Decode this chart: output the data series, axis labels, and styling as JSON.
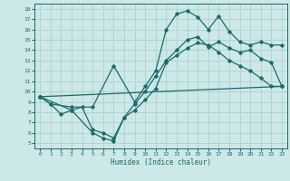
{
  "xlabel": "Humidex (Indice chaleur)",
  "xlim": [
    -0.5,
    23.5
  ],
  "ylim": [
    4.5,
    18.5
  ],
  "xticks": [
    0,
    1,
    2,
    3,
    4,
    5,
    6,
    7,
    8,
    9,
    10,
    11,
    12,
    13,
    14,
    15,
    16,
    17,
    18,
    19,
    20,
    21,
    22,
    23
  ],
  "yticks": [
    5,
    6,
    7,
    8,
    9,
    10,
    11,
    12,
    13,
    14,
    15,
    16,
    17,
    18
  ],
  "bg_color": "#cce8e8",
  "grid_color": "#aacccc",
  "line_color": "#1a6b6b",
  "line_width": 0.9,
  "marker": "D",
  "marker_size": 1.8,
  "curves": [
    {
      "x": [
        0,
        1,
        3,
        5,
        7,
        9,
        10,
        11,
        12,
        13,
        14,
        15,
        16,
        17,
        18,
        19,
        20,
        21,
        22,
        23
      ],
      "y": [
        9.5,
        8.8,
        8.5,
        8.5,
        12.5,
        9.0,
        10.5,
        12.0,
        16.0,
        17.5,
        17.8,
        17.2,
        16.0,
        17.3,
        15.8,
        14.8,
        14.5,
        14.8,
        14.5,
        14.5
      ]
    },
    {
      "x": [
        0,
        1,
        2,
        3,
        4,
        5,
        6,
        7,
        8,
        9,
        10,
        11,
        12,
        13,
        14,
        15,
        16,
        17,
        18,
        19,
        20,
        21,
        22,
        23
      ],
      "y": [
        9.5,
        8.8,
        7.8,
        8.2,
        8.5,
        6.3,
        6.0,
        5.5,
        7.5,
        8.8,
        10.0,
        11.5,
        13.0,
        14.0,
        15.0,
        15.3,
        14.3,
        14.8,
        14.2,
        13.8,
        14.0,
        13.2,
        12.8,
        10.5
      ]
    },
    {
      "x": [
        0,
        3,
        5,
        6,
        7,
        8,
        9,
        10,
        11,
        12,
        13,
        14,
        15,
        16,
        17,
        18,
        19,
        20,
        21,
        22,
        23
      ],
      "y": [
        9.5,
        8.2,
        6.0,
        5.5,
        5.2,
        7.5,
        8.2,
        9.2,
        10.3,
        12.8,
        13.5,
        14.2,
        14.7,
        14.5,
        13.8,
        13.0,
        12.5,
        12.0,
        11.3,
        10.5,
        10.5
      ]
    },
    {
      "x": [
        0,
        23
      ],
      "y": [
        9.5,
        10.5
      ]
    }
  ]
}
